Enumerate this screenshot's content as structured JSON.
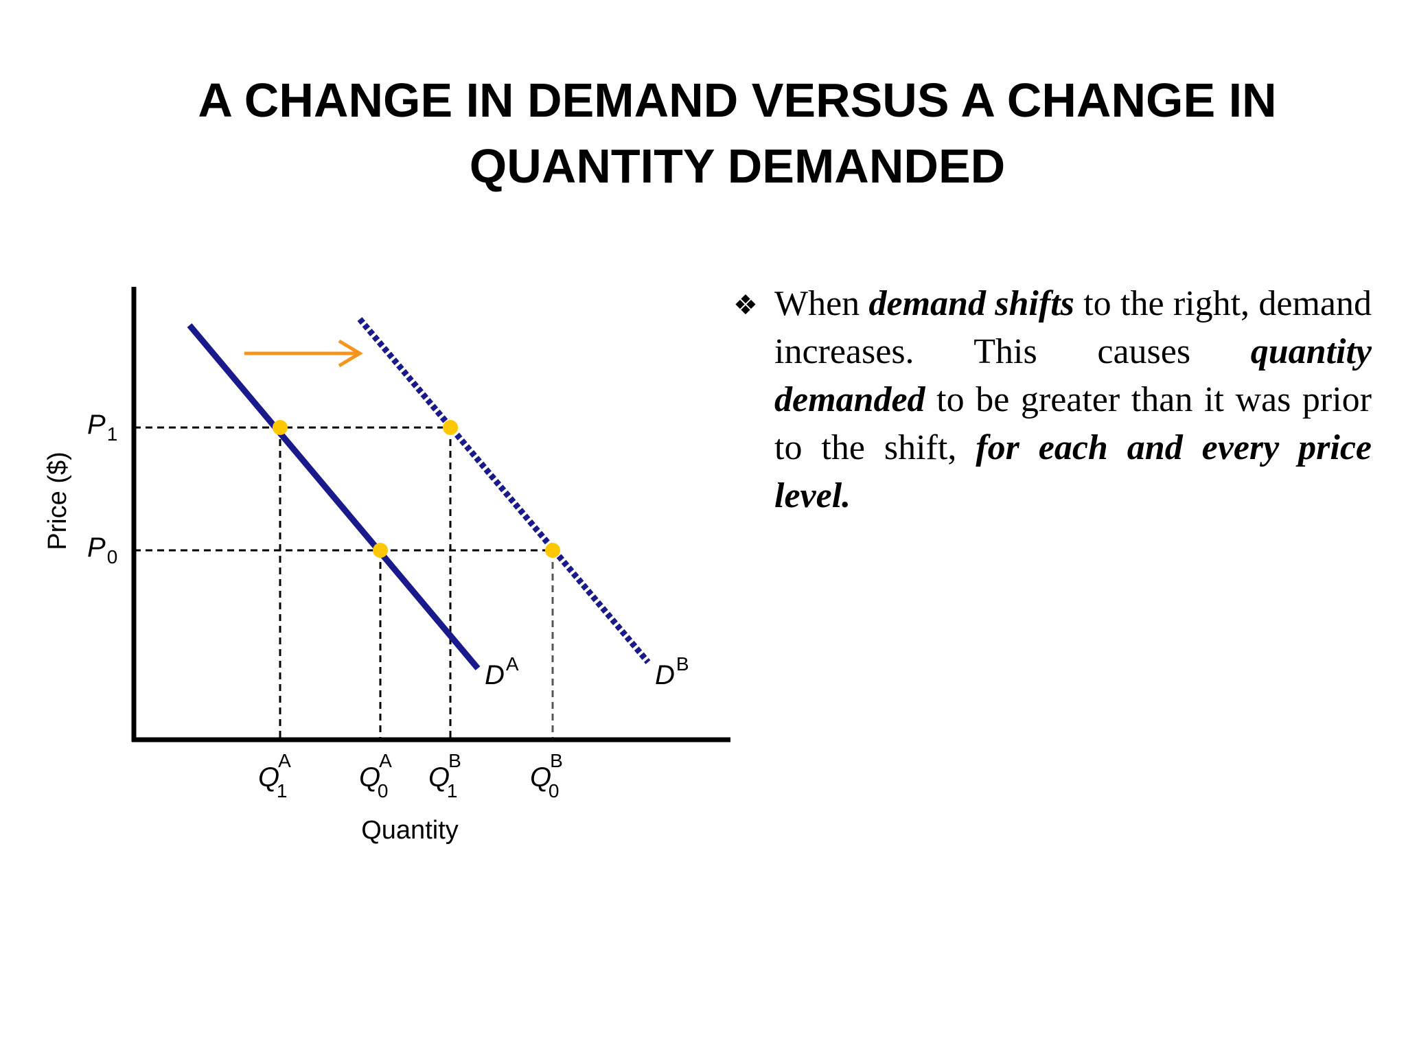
{
  "title": {
    "line1": "A CHANGE IN DEMAND VERSUS A CHANGE IN",
    "line2": "QUANTITY DEMANDED"
  },
  "diagram": {
    "y_axis_label": "Price ($)",
    "x_axis_label": "Quantity",
    "price_levels": [
      {
        "name": "P",
        "sub": "1"
      },
      {
        "name": "P",
        "sub": "0"
      }
    ],
    "quantity_ticks": [
      {
        "name": "Q",
        "sup": "A",
        "sub": "1"
      },
      {
        "name": "Q",
        "sup": "A",
        "sub": "0"
      },
      {
        "name": "Q",
        "sup": "B",
        "sub": "1"
      },
      {
        "name": "Q",
        "sup": "B",
        "sub": "0"
      }
    ],
    "curves": [
      {
        "name": "D",
        "sup": "A",
        "style": "solid"
      },
      {
        "name": "D",
        "sup": "B",
        "style": "dashed"
      }
    ],
    "colors": {
      "curve": "#1a1a8c",
      "point": "#ffc700",
      "arrow": "#f7941d",
      "axis": "#000000",
      "guide": "#000000"
    },
    "shift_direction": "right"
  },
  "bullet": {
    "glyph": "❖",
    "t1": "When ",
    "e1": "demand shifts",
    "t2": " to the right, demand increases. This causes ",
    "e2": "quantity demanded",
    "t3": " to be greater than it was prior to the shift, ",
    "e3": "for each and every price level."
  }
}
